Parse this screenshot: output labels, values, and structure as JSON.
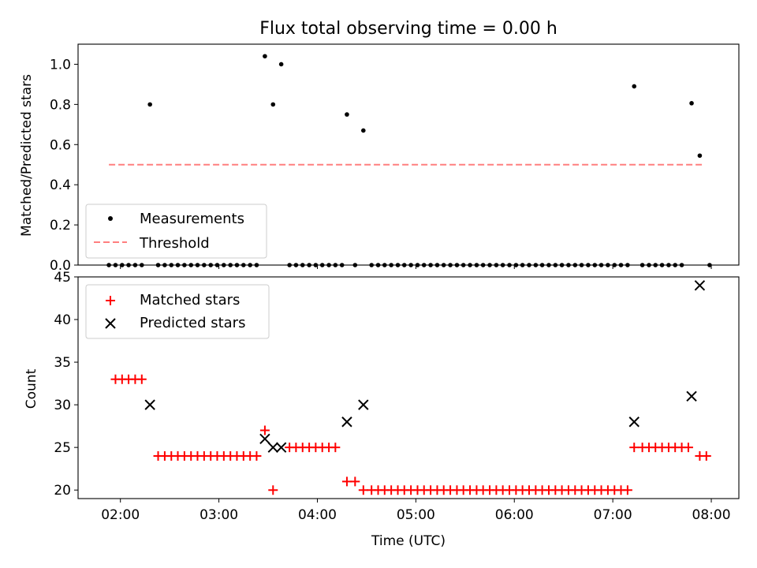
{
  "chart_data": [
    {
      "type": "scatter",
      "title": "Flux total observing time = 0.00 h",
      "xlabel": "",
      "ylabel": "Matched/Predicted stars",
      "xlim": [
        1.57,
        8.28
      ],
      "ylim": [
        0.0,
        1.1
      ],
      "yticks": [
        "0.0",
        "0.2",
        "0.4",
        "0.6",
        "0.8",
        "1.0"
      ],
      "xticks": [
        2,
        3,
        4,
        5,
        6,
        7,
        8
      ],
      "legend_position": "lower-left",
      "series": [
        {
          "name": "Measurements",
          "color": "#000000",
          "marker": "dot",
          "points": [
            [
              1.883,
              0.0
            ],
            [
              1.95,
              0.0
            ],
            [
              2.017,
              0.0
            ],
            [
              2.083,
              0.0
            ],
            [
              2.15,
              0.0
            ],
            [
              2.217,
              0.0
            ],
            [
              2.3,
              0.8
            ],
            [
              2.383,
              0.0
            ],
            [
              2.45,
              0.0
            ],
            [
              2.517,
              0.0
            ],
            [
              2.583,
              0.0
            ],
            [
              2.65,
              0.0
            ],
            [
              2.717,
              0.0
            ],
            [
              2.783,
              0.0
            ],
            [
              2.85,
              0.0
            ],
            [
              2.917,
              0.0
            ],
            [
              2.983,
              0.0
            ],
            [
              3.05,
              0.0
            ],
            [
              3.117,
              0.0
            ],
            [
              3.183,
              0.0
            ],
            [
              3.25,
              0.0
            ],
            [
              3.317,
              0.0
            ],
            [
              3.383,
              0.0
            ],
            [
              3.467,
              1.04
            ],
            [
              3.55,
              0.8
            ],
            [
              3.633,
              1.0
            ],
            [
              3.717,
              0.0
            ],
            [
              3.783,
              0.0
            ],
            [
              3.85,
              0.0
            ],
            [
              3.917,
              0.0
            ],
            [
              3.983,
              0.0
            ],
            [
              4.05,
              0.0
            ],
            [
              4.117,
              0.0
            ],
            [
              4.183,
              0.0
            ],
            [
              4.25,
              0.0
            ],
            [
              4.3,
              0.75
            ],
            [
              4.383,
              0.0
            ],
            [
              4.467,
              0.67
            ],
            [
              4.55,
              0.0
            ],
            [
              4.617,
              0.0
            ],
            [
              4.683,
              0.0
            ],
            [
              4.75,
              0.0
            ],
            [
              4.817,
              0.0
            ],
            [
              4.883,
              0.0
            ],
            [
              4.95,
              0.0
            ],
            [
              5.017,
              0.0
            ],
            [
              5.083,
              0.0
            ],
            [
              5.15,
              0.0
            ],
            [
              5.217,
              0.0
            ],
            [
              5.283,
              0.0
            ],
            [
              5.35,
              0.0
            ],
            [
              5.417,
              0.0
            ],
            [
              5.483,
              0.0
            ],
            [
              5.55,
              0.0
            ],
            [
              5.617,
              0.0
            ],
            [
              5.683,
              0.0
            ],
            [
              5.75,
              0.0
            ],
            [
              5.817,
              0.0
            ],
            [
              5.883,
              0.0
            ],
            [
              5.95,
              0.0
            ],
            [
              6.017,
              0.0
            ],
            [
              6.083,
              0.0
            ],
            [
              6.15,
              0.0
            ],
            [
              6.217,
              0.0
            ],
            [
              6.283,
              0.0
            ],
            [
              6.35,
              0.0
            ],
            [
              6.417,
              0.0
            ],
            [
              6.483,
              0.0
            ],
            [
              6.55,
              0.0
            ],
            [
              6.617,
              0.0
            ],
            [
              6.683,
              0.0
            ],
            [
              6.75,
              0.0
            ],
            [
              6.817,
              0.0
            ],
            [
              6.883,
              0.0
            ],
            [
              6.95,
              0.0
            ],
            [
              7.017,
              0.0
            ],
            [
              7.083,
              0.0
            ],
            [
              7.15,
              0.0
            ],
            [
              7.217,
              0.89
            ],
            [
              7.3,
              0.0
            ],
            [
              7.367,
              0.0
            ],
            [
              7.433,
              0.0
            ],
            [
              7.5,
              0.0
            ],
            [
              7.567,
              0.0
            ],
            [
              7.633,
              0.0
            ],
            [
              7.7,
              0.0
            ],
            [
              7.8,
              0.806
            ],
            [
              7.883,
              0.545
            ],
            [
              7.983,
              0.0
            ]
          ]
        },
        {
          "name": "Threshold",
          "color": "#ff0000",
          "style": "dashed",
          "opacity": 0.5,
          "x": [
            1.883,
            7.933
          ],
          "y": [
            0.5,
            0.5
          ]
        }
      ]
    },
    {
      "type": "scatter",
      "title": "",
      "xlabel": "Time (UTC)",
      "ylabel": "Count",
      "xlim": [
        1.57,
        8.28
      ],
      "ylim": [
        19.0,
        45.0
      ],
      "yticks": [
        "20",
        "25",
        "30",
        "35",
        "40",
        "45"
      ],
      "xticks": [
        "02:00",
        "03:00",
        "04:00",
        "05:00",
        "06:00",
        "07:00",
        "08:00"
      ],
      "legend_position": "upper-left",
      "series": [
        {
          "name": "Matched stars",
          "color": "#ff0000",
          "marker": "plus",
          "points": [
            [
              1.95,
              33
            ],
            [
              2.017,
              33
            ],
            [
              2.083,
              33
            ],
            [
              2.15,
              33
            ],
            [
              2.217,
              33
            ],
            [
              2.383,
              24
            ],
            [
              2.45,
              24
            ],
            [
              2.517,
              24
            ],
            [
              2.583,
              24
            ],
            [
              2.65,
              24
            ],
            [
              2.717,
              24
            ],
            [
              2.783,
              24
            ],
            [
              2.85,
              24
            ],
            [
              2.917,
              24
            ],
            [
              2.983,
              24
            ],
            [
              3.05,
              24
            ],
            [
              3.117,
              24
            ],
            [
              3.183,
              24
            ],
            [
              3.25,
              24
            ],
            [
              3.317,
              24
            ],
            [
              3.383,
              24
            ],
            [
              3.467,
              27
            ],
            [
              3.55,
              20
            ],
            [
              3.717,
              25
            ],
            [
              3.783,
              25
            ],
            [
              3.85,
              25
            ],
            [
              3.917,
              25
            ],
            [
              3.983,
              25
            ],
            [
              4.05,
              25
            ],
            [
              4.117,
              25
            ],
            [
              4.183,
              25
            ],
            [
              4.3,
              21
            ],
            [
              4.383,
              21
            ],
            [
              4.467,
              20
            ],
            [
              4.55,
              20
            ],
            [
              4.617,
              20
            ],
            [
              4.683,
              20
            ],
            [
              4.75,
              20
            ],
            [
              4.817,
              20
            ],
            [
              4.883,
              20
            ],
            [
              4.95,
              20
            ],
            [
              5.017,
              20
            ],
            [
              5.083,
              20
            ],
            [
              5.15,
              20
            ],
            [
              5.217,
              20
            ],
            [
              5.283,
              20
            ],
            [
              5.35,
              20
            ],
            [
              5.417,
              20
            ],
            [
              5.483,
              20
            ],
            [
              5.55,
              20
            ],
            [
              5.617,
              20
            ],
            [
              5.683,
              20
            ],
            [
              5.75,
              20
            ],
            [
              5.817,
              20
            ],
            [
              5.883,
              20
            ],
            [
              5.95,
              20
            ],
            [
              6.017,
              20
            ],
            [
              6.083,
              20
            ],
            [
              6.15,
              20
            ],
            [
              6.217,
              20
            ],
            [
              6.283,
              20
            ],
            [
              6.35,
              20
            ],
            [
              6.417,
              20
            ],
            [
              6.483,
              20
            ],
            [
              6.55,
              20
            ],
            [
              6.617,
              20
            ],
            [
              6.683,
              20
            ],
            [
              6.75,
              20
            ],
            [
              6.817,
              20
            ],
            [
              6.883,
              20
            ],
            [
              6.95,
              20
            ],
            [
              7.017,
              20
            ],
            [
              7.083,
              20
            ],
            [
              7.15,
              20
            ],
            [
              7.217,
              25
            ],
            [
              7.3,
              25
            ],
            [
              7.367,
              25
            ],
            [
              7.433,
              25
            ],
            [
              7.5,
              25
            ],
            [
              7.567,
              25
            ],
            [
              7.633,
              25
            ],
            [
              7.7,
              25
            ],
            [
              7.767,
              25
            ],
            [
              7.883,
              24
            ],
            [
              7.95,
              24
            ]
          ]
        },
        {
          "name": "Predicted stars",
          "color": "#000000",
          "marker": "x",
          "points": [
            [
              2.3,
              30
            ],
            [
              3.467,
              26
            ],
            [
              3.55,
              25
            ],
            [
              3.633,
              25
            ],
            [
              4.3,
              28
            ],
            [
              4.467,
              30
            ],
            [
              7.217,
              28
            ],
            [
              7.8,
              31
            ],
            [
              7.883,
              44
            ]
          ]
        }
      ]
    }
  ]
}
